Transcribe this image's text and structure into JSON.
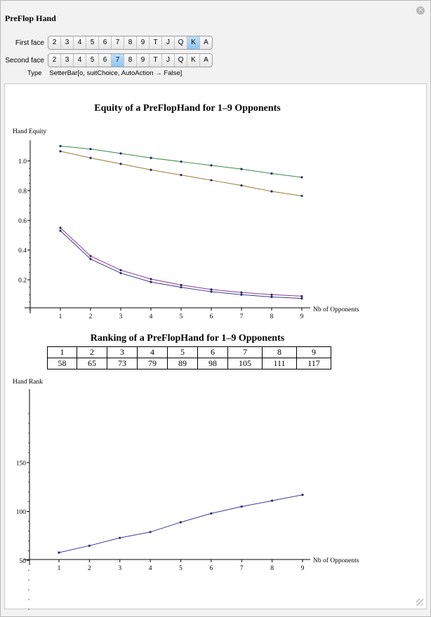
{
  "window": {
    "title": "PreFlop Hand"
  },
  "controls": {
    "first_face": {
      "label": "First face",
      "options": [
        "2",
        "3",
        "4",
        "5",
        "6",
        "7",
        "8",
        "9",
        "T",
        "J",
        "Q",
        "K",
        "A"
      ],
      "selected": "K"
    },
    "second_face": {
      "label": "Second face",
      "options": [
        "2",
        "3",
        "4",
        "5",
        "6",
        "7",
        "8",
        "9",
        "T",
        "J",
        "Q",
        "K",
        "A"
      ],
      "selected": "7"
    },
    "type_label": "Type",
    "type_value": "SetterBar[o, suitChoice, AutoAction → False]"
  },
  "colors": {
    "green": "#3a8a4a",
    "brown": "#9a7b35",
    "purple": "#8a3a8a",
    "blue": "#3a3a9a",
    "point": "#2a2a6a",
    "selected": "#8ec5f2"
  },
  "chart_data": [
    {
      "type": "line",
      "title": "Equity of a PreFlopHand for 1–9 Opponents",
      "ylabel": "Hand Equity",
      "xlabel": "Nb of Opponents",
      "x": [
        1,
        2,
        3,
        4,
        5,
        6,
        7,
        8,
        9
      ],
      "xticks": [
        "1",
        "2",
        "3",
        "4",
        "5",
        "6",
        "7",
        "8",
        "9"
      ],
      "yticks": [
        "0.2",
        "0.4",
        "0.6",
        "0.8",
        "1.0"
      ],
      "ylim": [
        0,
        1.1
      ],
      "grid": false,
      "legend": "none",
      "series": [
        {
          "values": [
            1.1,
            1.08,
            1.05,
            1.02,
            0.995,
            0.97,
            0.945,
            0.915,
            0.89
          ],
          "color": "#3a8a4a"
        },
        {
          "values": [
            1.065,
            1.02,
            0.98,
            0.94,
            0.905,
            0.87,
            0.835,
            0.795,
            0.765
          ],
          "color": "#9a7b35"
        },
        {
          "values": [
            0.55,
            0.36,
            0.265,
            0.205,
            0.165,
            0.135,
            0.115,
            0.1,
            0.09
          ],
          "color": "#8a3a8a"
        },
        {
          "values": [
            0.53,
            0.34,
            0.245,
            0.185,
            0.15,
            0.12,
            0.1,
            0.085,
            0.075
          ],
          "color": "#3a3a9a"
        }
      ]
    },
    {
      "type": "table",
      "title": "Ranking of a PreFlopHand for 1–9 Opponents",
      "header": [
        "1",
        "2",
        "3",
        "4",
        "5",
        "6",
        "7",
        "8",
        "9"
      ],
      "row": [
        "58",
        "65",
        "73",
        "79",
        "89",
        "98",
        "105",
        "111",
        "117"
      ]
    },
    {
      "type": "line",
      "ylabel": "Hand Rank",
      "xlabel": "Nb of Opponents",
      "x": [
        1,
        2,
        3,
        4,
        5,
        6,
        7,
        8,
        9
      ],
      "xticks": [
        "1",
        "2",
        "3",
        "4",
        "5",
        "6",
        "7",
        "8",
        "9"
      ],
      "yticks": [
        "50",
        "100",
        "150"
      ],
      "ylim": [
        0,
        170
      ],
      "grid": false,
      "legend": "none",
      "series": [
        {
          "values": [
            58,
            65,
            73,
            79,
            89,
            98,
            105,
            111,
            117
          ],
          "color": "#3a3a9a"
        }
      ]
    }
  ]
}
